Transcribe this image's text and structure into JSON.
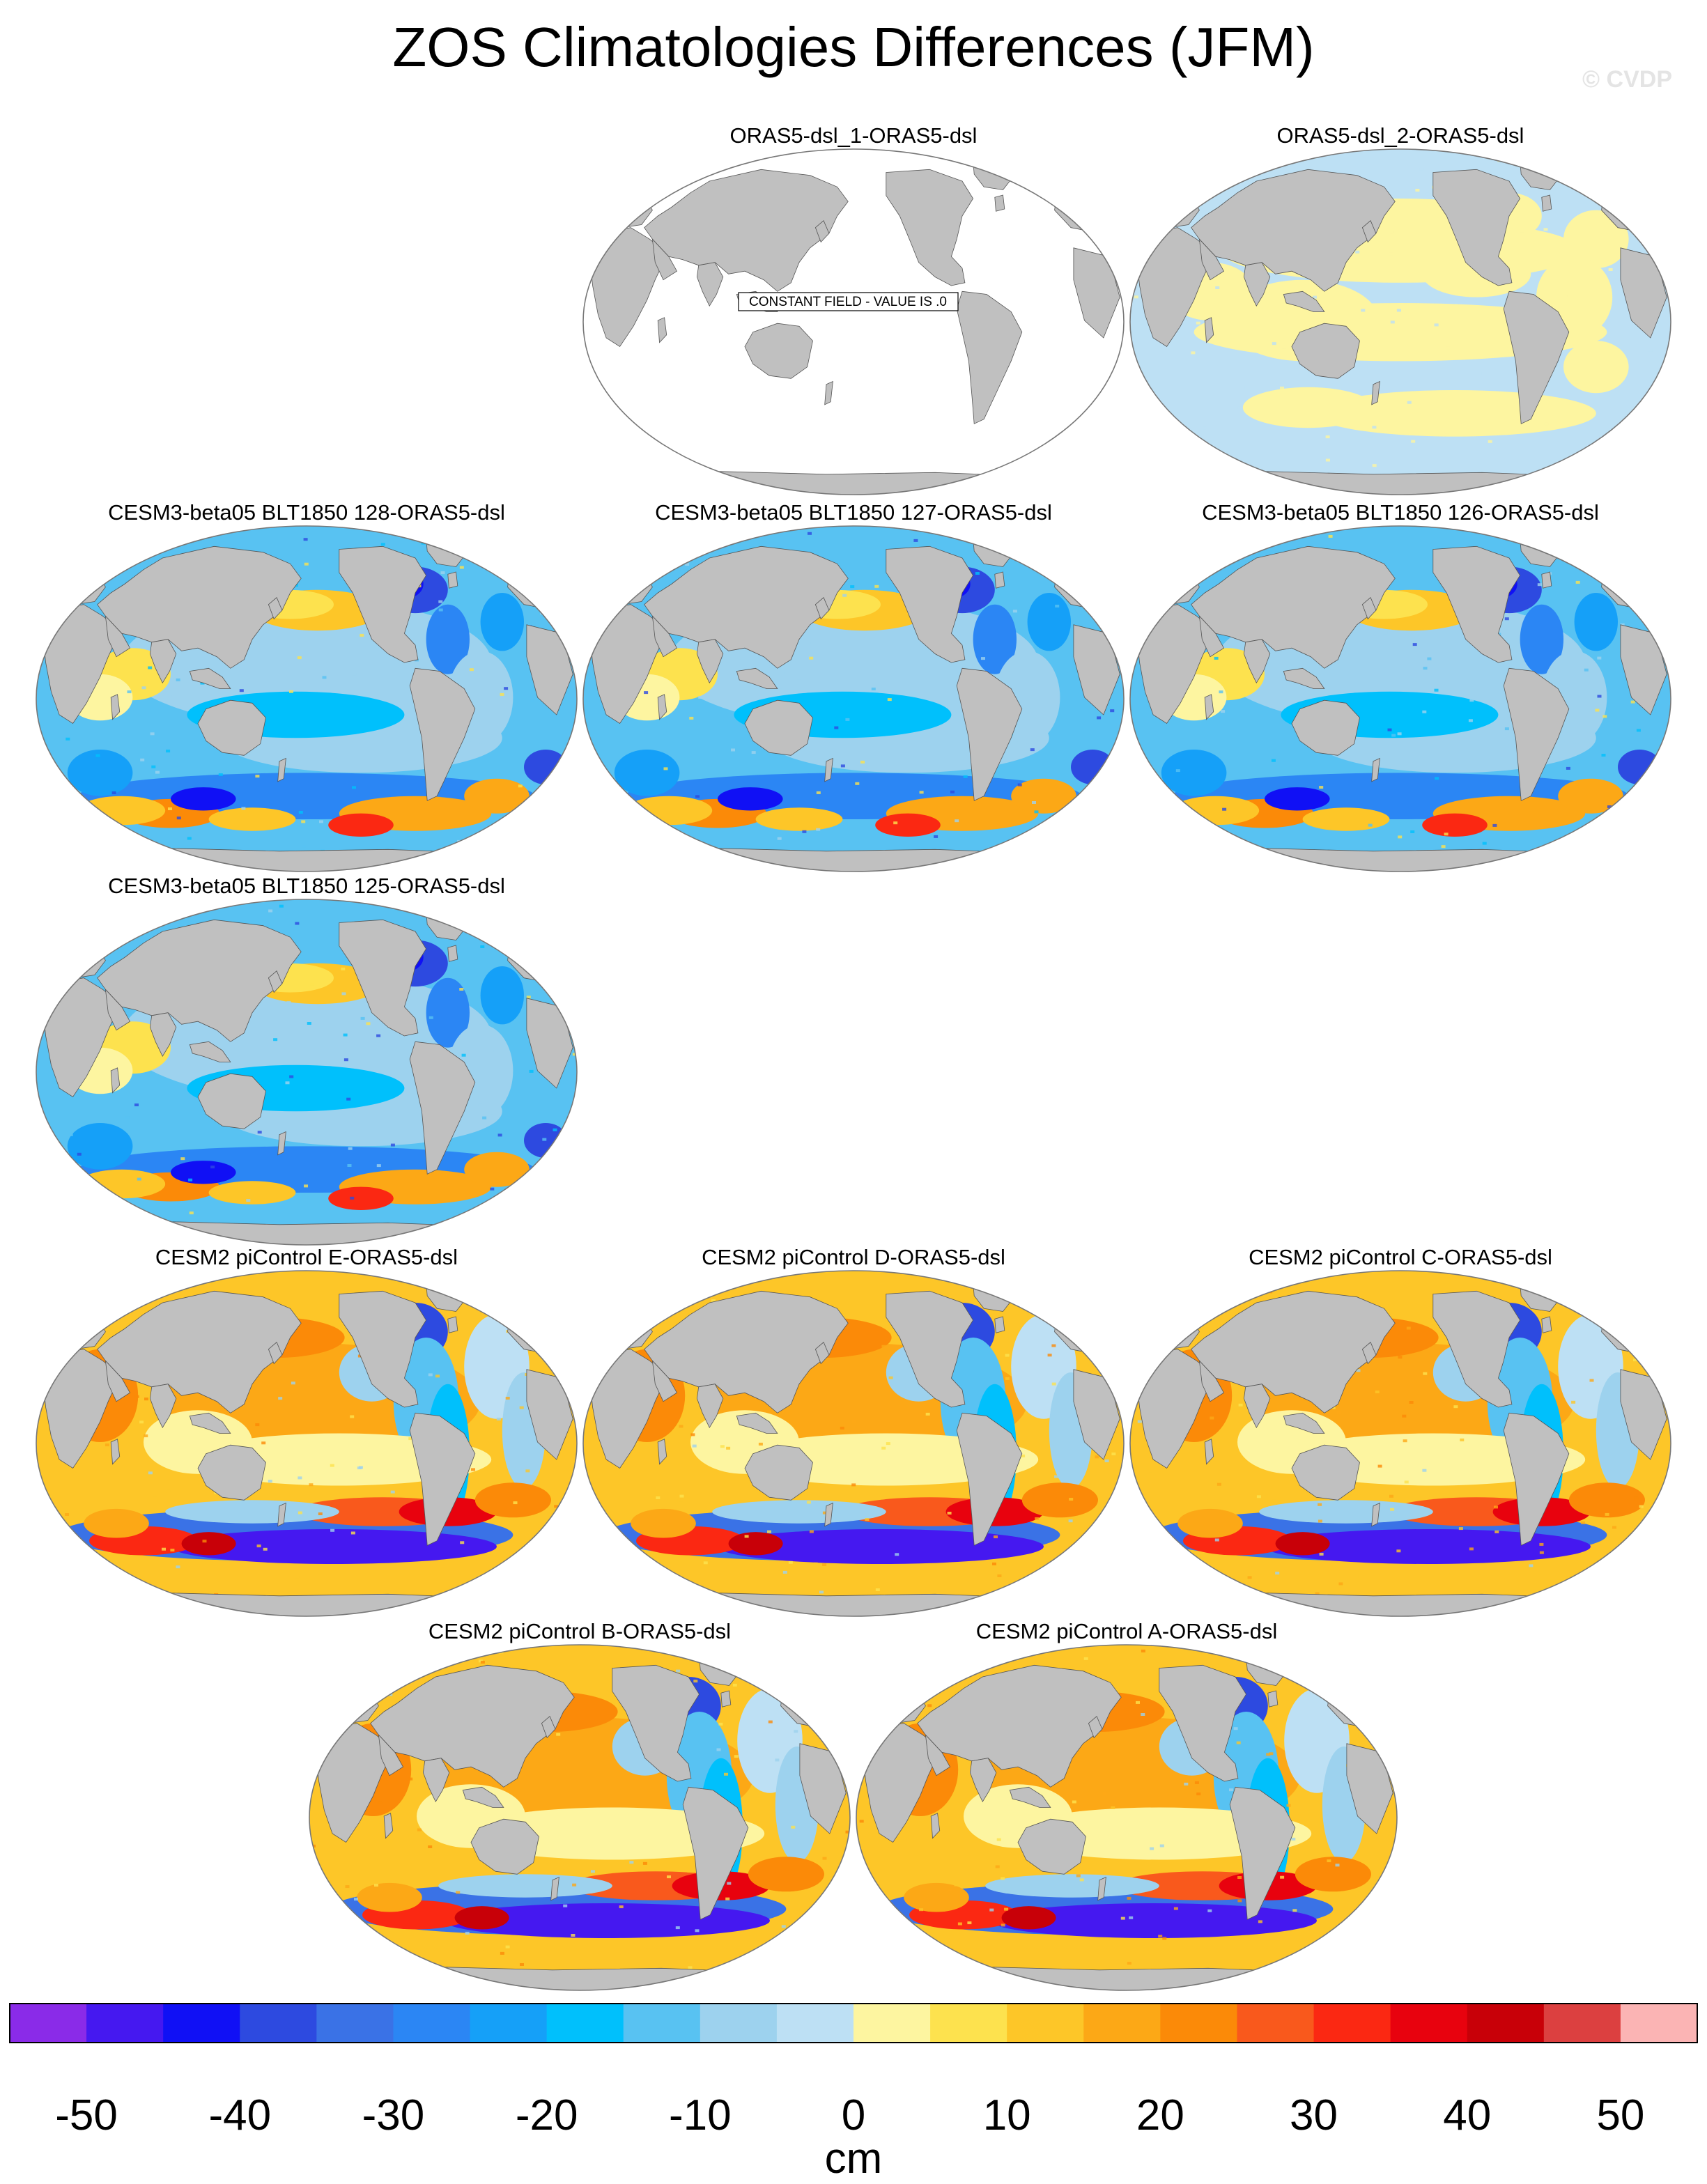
{
  "title": "ZOS Climatologies Differences (JFM)",
  "watermark": "© CVDP",
  "colors": {
    "land": "#c0c0c0",
    "coast": "#555555",
    "ocean_missing": "#ffffff",
    "border": "#777777"
  },
  "panels": [
    {
      "title": "ORAS5-dsl_1-ORAS5-dsl",
      "pattern": "constant",
      "note": "CONSTANT FIELD - VALUE IS .0"
    },
    {
      "title": "ORAS5-dsl_2-ORAS5-dsl",
      "pattern": "near-zero"
    },
    {
      "title": "CESM3-beta05 BLT1850 128-ORAS5-dsl",
      "pattern": "cesm3"
    },
    {
      "title": "CESM3-beta05 BLT1850 127-ORAS5-dsl",
      "pattern": "cesm3"
    },
    {
      "title": "CESM3-beta05 BLT1850 126-ORAS5-dsl",
      "pattern": "cesm3"
    },
    {
      "title": "CESM3-beta05 BLT1850 125-ORAS5-dsl",
      "pattern": "cesm3"
    },
    {
      "title": "CESM2 piControl E-ORAS5-dsl",
      "pattern": "cesm2"
    },
    {
      "title": "CESM2 piControl D-ORAS5-dsl",
      "pattern": "cesm2"
    },
    {
      "title": "CESM2 piControl C-ORAS5-dsl",
      "pattern": "cesm2"
    },
    {
      "title": "CESM2 piControl B-ORAS5-dsl",
      "pattern": "cesm2"
    },
    {
      "title": "CESM2 piControl A-ORAS5-dsl",
      "pattern": "cesm2"
    }
  ],
  "colorbar": {
    "unit": "cm",
    "colors": [
      "#8a2be8",
      "#4518f0",
      "#1010f5",
      "#2d4ae0",
      "#3a72e6",
      "#2b86f4",
      "#15a0f8",
      "#00c0fc",
      "#58c2f2",
      "#9dd2ee",
      "#bde0f4",
      "#fdf5a0",
      "#fde24e",
      "#fdc628",
      "#fca816",
      "#fb8a08",
      "#f9591c",
      "#fb2812",
      "#e8020e",
      "#c80008",
      "#dc4040",
      "#fbb4b4"
    ],
    "ticks": [
      "-50",
      "-40",
      "-30",
      "-20",
      "-10",
      "0",
      "10",
      "20",
      "30",
      "40",
      "50"
    ]
  }
}
